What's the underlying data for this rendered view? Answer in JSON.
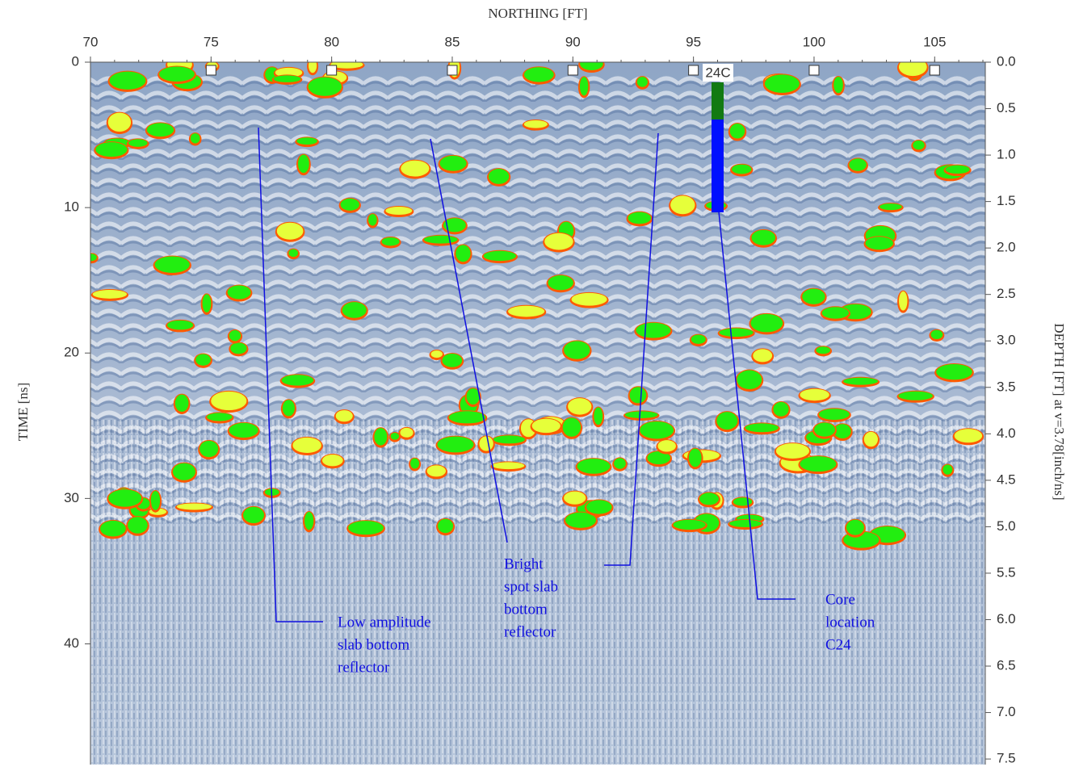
{
  "chart_data": {
    "type": "radargram",
    "xlabel": "NORTHING [FT]",
    "ylabel": "TIME [ns]",
    "y2label": "DEPTH [FT] at v=3.78[inch/ns]",
    "xlim": [
      70,
      107.1
    ],
    "xticks": [
      70,
      75,
      80,
      85,
      90,
      95,
      100,
      105
    ],
    "ylim": [
      0,
      48.3
    ],
    "yticks": [
      0,
      10,
      20,
      30,
      40
    ],
    "y2lim": [
      0,
      7.56
    ],
    "y2ticks": [
      {
        "value": 0,
        "label": "0.0"
      },
      0.5,
      {
        "value": 1,
        "label": "1.0"
      },
      1.5,
      {
        "value": 2,
        "label": "2.0"
      },
      2.5,
      {
        "value": 3,
        "label": "3.0"
      },
      3.5,
      {
        "value": 4,
        "label": "4.0"
      },
      4.5,
      {
        "value": 5,
        "label": "5.0"
      },
      5.5,
      {
        "value": 6,
        "label": "6.0"
      },
      6.5,
      {
        "value": 7,
        "label": "7.0"
      },
      7.5
    ],
    "core_label": "24C",
    "annotations": [
      {
        "lines": [
          "Low amplitude",
          "slab bottom",
          "reflector"
        ]
      },
      {
        "lines": [
          "Bright",
          "spot slab",
          "bottom",
          "reflector"
        ]
      },
      {
        "lines": [
          "Core",
          "location",
          "C24"
        ]
      }
    ]
  }
}
